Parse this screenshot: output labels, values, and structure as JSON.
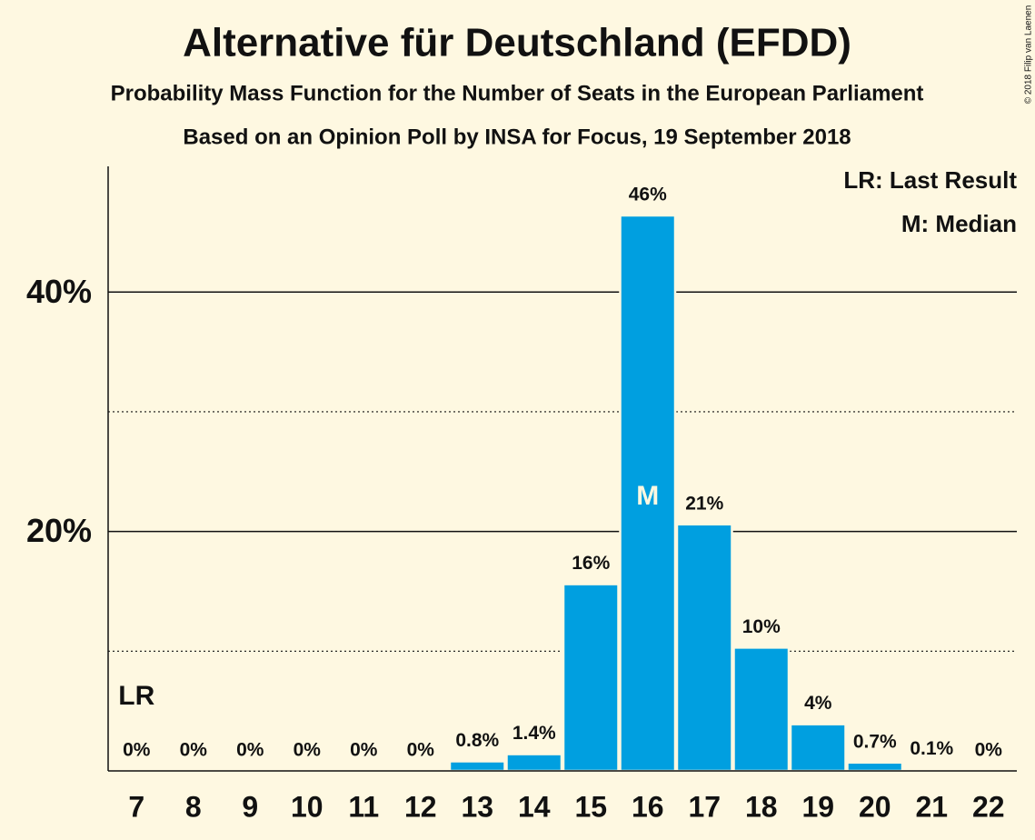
{
  "chart_data": {
    "type": "bar",
    "title": "Alternative für Deutschland (EFDD)",
    "subtitle": "Probability Mass Function for the Number of Seats in the European Parliament",
    "subtitle2": "Based on an Opinion Poll by INSA for Focus, 19 September 2018",
    "copyright": "© 2018 Filip van Laenen",
    "categories": [
      "7",
      "8",
      "9",
      "10",
      "11",
      "12",
      "13",
      "14",
      "15",
      "16",
      "17",
      "18",
      "19",
      "20",
      "21",
      "22"
    ],
    "values": [
      0,
      0,
      0,
      0,
      0,
      0,
      0.8,
      1.4,
      15.6,
      46.4,
      20.6,
      10.3,
      3.9,
      0.7,
      0.1,
      0
    ],
    "value_labels": [
      "0%",
      "0%",
      "0%",
      "0%",
      "0%",
      "0%",
      "0.8%",
      "1.4%",
      "16%",
      "46%",
      "21%",
      "10%",
      "4%",
      "0.7%",
      "0.1%",
      "0%"
    ],
    "color": "#009fe0",
    "ylim": [
      0,
      50.5
    ],
    "yticks": [
      {
        "value": 20,
        "label": "20%"
      },
      {
        "value": 40,
        "label": "40%"
      }
    ],
    "minor_gridlines": [
      10,
      30
    ],
    "grid": true,
    "markers": [
      {
        "label": "LR",
        "category": "7"
      },
      {
        "label": "M",
        "category": "16"
      }
    ],
    "legend": [
      "LR: Last Result",
      "M: Median"
    ],
    "legend_position": "upper right"
  }
}
